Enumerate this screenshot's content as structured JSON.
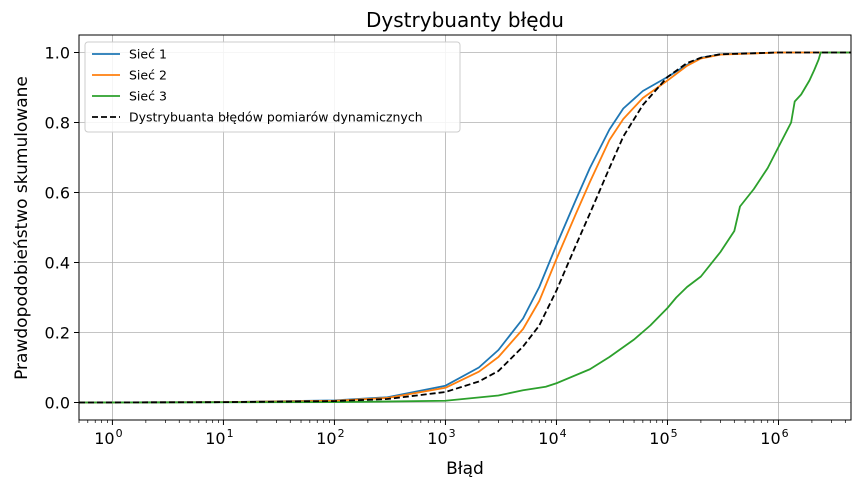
{
  "chart_data": {
    "type": "line",
    "title": "Dystrybuanty błędu",
    "xlabel": "Błąd",
    "ylabel": "Prawdopodobieństwo skumulowane",
    "xscale": "log",
    "xlim": [
      0.5,
      4500000
    ],
    "ylim": [
      -0.05,
      1.05
    ],
    "grid": true,
    "legend_position": "top-left",
    "x_ticks": [
      {
        "base": "10",
        "exp": "0",
        "value": 1
      },
      {
        "base": "10",
        "exp": "1",
        "value": 10
      },
      {
        "base": "10",
        "exp": "2",
        "value": 100
      },
      {
        "base": "10",
        "exp": "3",
        "value": 1000
      },
      {
        "base": "10",
        "exp": "4",
        "value": 10000
      },
      {
        "base": "10",
        "exp": "5",
        "value": 100000
      },
      {
        "base": "10",
        "exp": "6",
        "value": 1000000
      }
    ],
    "y_ticks": [
      {
        "label": "0.0",
        "value": 0
      },
      {
        "label": "0.2",
        "value": 0.2
      },
      {
        "label": "0.4",
        "value": 0.4
      },
      {
        "label": "0.6",
        "value": 0.6
      },
      {
        "label": "0.8",
        "value": 0.8
      },
      {
        "label": "1.0",
        "value": 1.0
      }
    ],
    "series": [
      {
        "name": "Sieć 1",
        "color": "#1f77b4",
        "dash": "solid",
        "x": [
          0.5,
          10,
          100,
          300,
          1000,
          2000,
          3000,
          5000,
          7000,
          10000,
          15000,
          20000,
          30000,
          40000,
          60000,
          100000,
          150000,
          200000,
          300000,
          1000000,
          4500000
        ],
        "y": [
          0,
          0.001,
          0.006,
          0.015,
          0.048,
          0.1,
          0.15,
          0.24,
          0.33,
          0.45,
          0.58,
          0.67,
          0.78,
          0.84,
          0.89,
          0.93,
          0.965,
          0.985,
          0.995,
          1.0,
          1.0
        ]
      },
      {
        "name": "Sieć 2",
        "color": "#ff7f0e",
        "dash": "solid",
        "x": [
          0.5,
          10,
          100,
          300,
          1000,
          2000,
          3000,
          5000,
          7000,
          10000,
          15000,
          20000,
          30000,
          40000,
          60000,
          100000,
          150000,
          200000,
          300000,
          1000000,
          4500000
        ],
        "y": [
          0,
          0.001,
          0.005,
          0.013,
          0.042,
          0.088,
          0.13,
          0.21,
          0.29,
          0.41,
          0.54,
          0.63,
          0.75,
          0.81,
          0.87,
          0.92,
          0.962,
          0.983,
          0.994,
          1.0,
          1.0
        ]
      },
      {
        "name": "Sieć 3",
        "color": "#2ca02c",
        "dash": "solid",
        "x": [
          0.5,
          100,
          1000,
          3000,
          5000,
          8000,
          10000,
          20000,
          30000,
          50000,
          70000,
          100000,
          120000,
          150000,
          200000,
          300000,
          400000,
          450000,
          600000,
          800000,
          1000000,
          1300000,
          1400000,
          1600000,
          1900000,
          2100000,
          2300000,
          2400000,
          4500000
        ],
        "y": [
          0,
          0.001,
          0.005,
          0.02,
          0.035,
          0.045,
          0.055,
          0.095,
          0.13,
          0.18,
          0.22,
          0.27,
          0.3,
          0.33,
          0.36,
          0.43,
          0.49,
          0.56,
          0.61,
          0.67,
          0.73,
          0.8,
          0.86,
          0.88,
          0.92,
          0.95,
          0.98,
          1.0,
          1.0
        ]
      },
      {
        "name": "Dystrybuanta błędów pomiarów dynamicznych",
        "color": "#000000",
        "dash": "dashed",
        "x": [
          0.5,
          10,
          100,
          300,
          1000,
          2000,
          3000,
          5000,
          7000,
          10000,
          15000,
          20000,
          30000,
          40000,
          60000,
          100000,
          150000,
          200000,
          300000,
          1000000,
          4500000
        ],
        "y": [
          0,
          0.001,
          0.004,
          0.01,
          0.03,
          0.06,
          0.09,
          0.16,
          0.22,
          0.32,
          0.45,
          0.54,
          0.67,
          0.76,
          0.85,
          0.93,
          0.97,
          0.985,
          0.995,
          1.0,
          1.0
        ]
      }
    ]
  }
}
